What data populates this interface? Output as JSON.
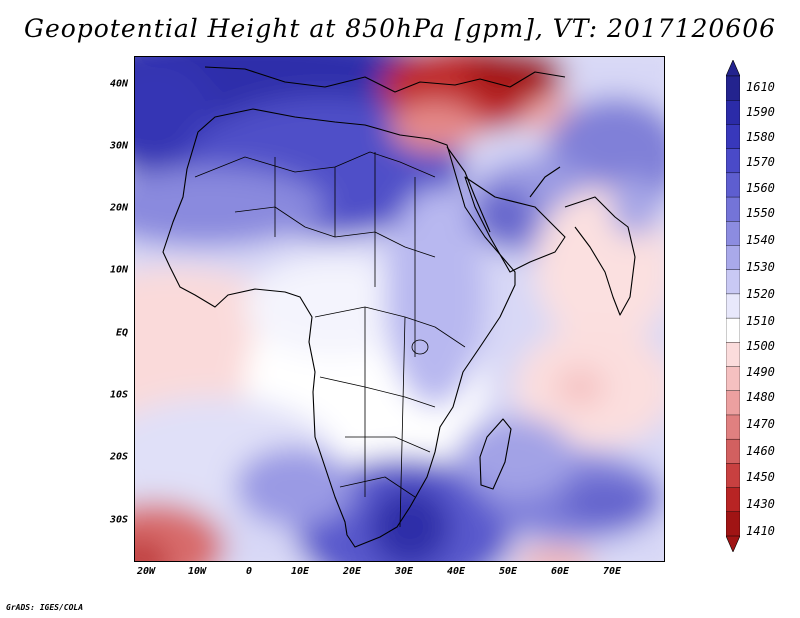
{
  "title": "Geopotential Height at 850hPa [gpm], VT: 2017120606",
  "variable": "Geopotential Height",
  "level": "850hPa",
  "units": "gpm",
  "valid_time": "2017120606",
  "map": {
    "region": "Africa and surrounding oceans (Mediterranean, Arabian Peninsula, Indian Ocean)",
    "lon_range": [
      -23,
      80
    ],
    "lat_range": [
      -37,
      45
    ],
    "lat_labels": [
      "40N",
      "30N",
      "20N",
      "10N",
      "EQ",
      "10S",
      "20S",
      "30S"
    ],
    "lon_labels": [
      "20W",
      "10W",
      "0",
      "10E",
      "20E",
      "30E",
      "40E",
      "50E",
      "60E",
      "70E"
    ],
    "features": [
      {
        "name": "Mediterranean / North Africa high",
        "range": "1580-1610",
        "color": "#2b2ba8"
      },
      {
        "name": "Turkey / Middle East low",
        "range": "1410-1460",
        "color": "#b81c1c"
      },
      {
        "name": "Arabian Peninsula",
        "range": "1530-1550"
      },
      {
        "name": "Equatorial Atlantic",
        "range": "1490-1510"
      },
      {
        "name": "Southern Africa high",
        "range": "1560-1590"
      },
      {
        "name": "Southwest Atlantic corner low",
        "range": "1470-1490"
      },
      {
        "name": "South Indian Ocean",
        "range": "1540-1560"
      }
    ]
  },
  "colorbar": {
    "levels": [
      "1610",
      "1590",
      "1580",
      "1570",
      "1560",
      "1550",
      "1540",
      "1530",
      "1520",
      "1510",
      "1500",
      "1490",
      "1480",
      "1470",
      "1460",
      "1450",
      "1430",
      "1410"
    ],
    "colors": [
      "#23238e",
      "#2b2ba8",
      "#3838bb",
      "#4a4ac8",
      "#5e5ed0",
      "#7474d8",
      "#8c8ce0",
      "#a9a9ea",
      "#c9c9f4",
      "#e8e8fb",
      "#ffffff",
      "#fbdcdc",
      "#f5c0c0",
      "#eca0a0",
      "#e08080",
      "#d26060",
      "#c84040",
      "#b82424",
      "#a01414"
    ]
  },
  "credit": "GrADS: IGES/COLA"
}
